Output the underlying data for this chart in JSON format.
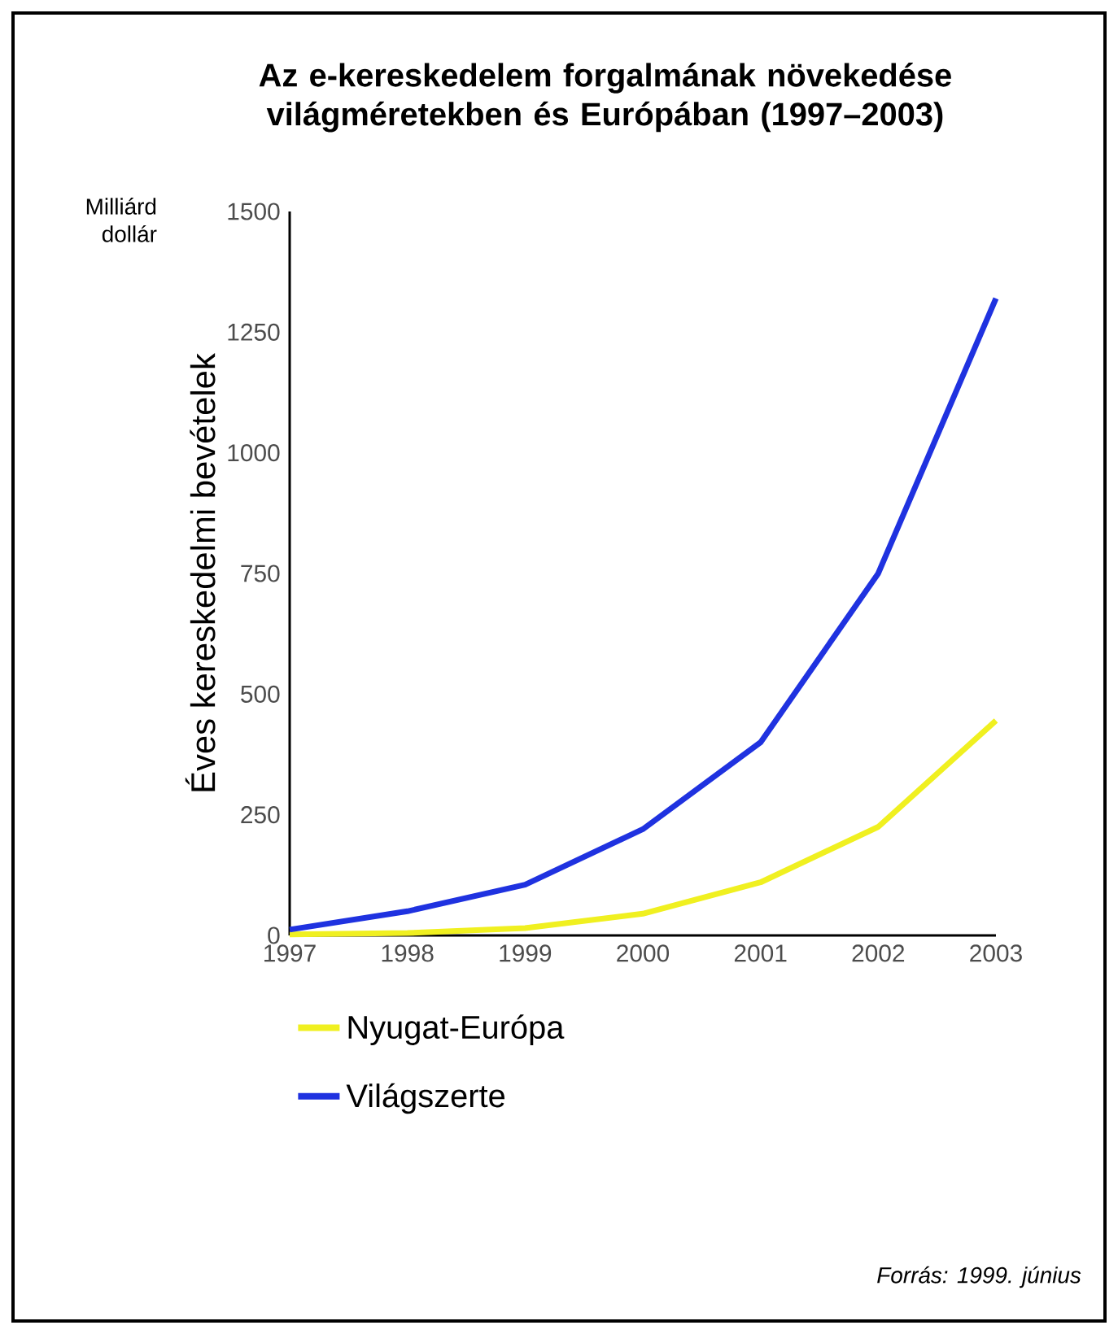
{
  "chart_data": {
    "type": "line",
    "title": "Az e-kereskedelem forgalmának növekedése világméretekben és Európában (1997–2003)",
    "ylabel": "Éves kereskedelmi bevételek",
    "annotations": [
      "Milliárd dollár",
      "Forrás: 1999. június"
    ],
    "x": [
      1997,
      1998,
      1999,
      2000,
      2001,
      2002,
      2003
    ],
    "xlim": [
      1997,
      2003
    ],
    "xticks": [
      1997,
      1998,
      1999,
      2000,
      2001,
      2002,
      2003
    ],
    "ylim": [
      0,
      1500
    ],
    "yticks": [
      0,
      250,
      500,
      750,
      1000,
      1250,
      1500
    ],
    "series": [
      {
        "name": "Nyugat-Európa",
        "color": "#f0f020",
        "values": [
          2,
          5,
          15,
          45,
          110,
          225,
          445
        ]
      },
      {
        "name": "Világszerte",
        "color": "#1f32e0",
        "values": [
          12,
          50,
          105,
          220,
          400,
          750,
          1320
        ]
      }
    ],
    "legend": "bottom",
    "grid": false,
    "marker": "none",
    "line_style": "solid"
  }
}
